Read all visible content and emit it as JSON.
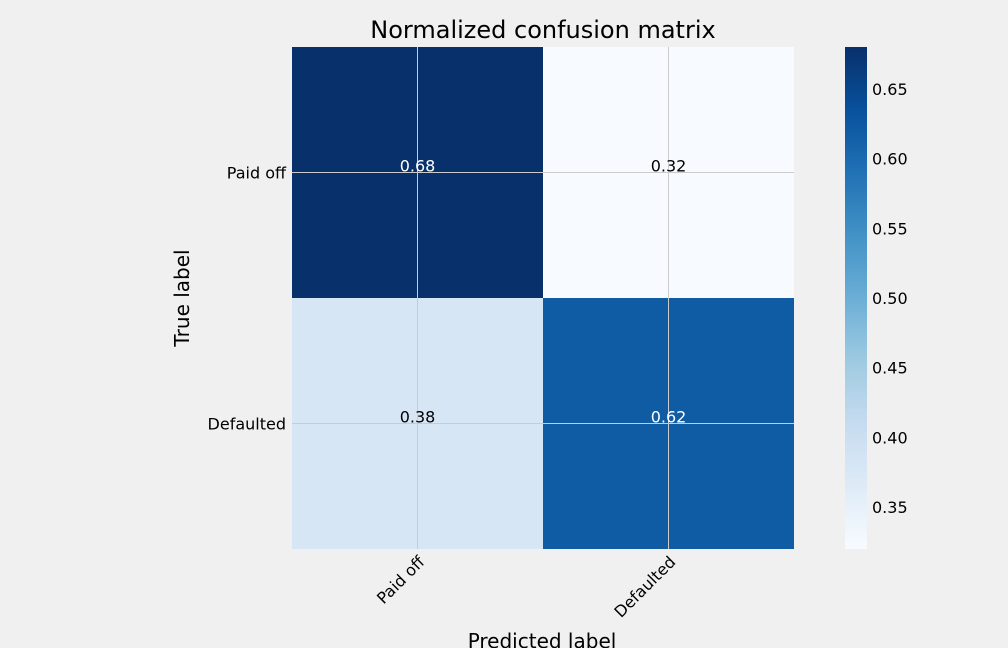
{
  "chart_data": {
    "type": "heatmap",
    "title": "Normalized confusion matrix",
    "xlabel": "Predicted label",
    "ylabel": "True label",
    "x_categories": [
      "Paid off",
      "Defaulted"
    ],
    "y_categories": [
      "Paid off",
      "Defaulted"
    ],
    "values": [
      [
        0.68,
        0.32
      ],
      [
        0.38,
        0.62
      ]
    ],
    "value_labels": [
      [
        "0.68",
        "0.32"
      ],
      [
        "0.38",
        "0.62"
      ]
    ],
    "colormap": "Blues",
    "vmin": 0.32,
    "vmax": 0.68,
    "colorbar_ticks": [
      "0.35",
      "0.40",
      "0.45",
      "0.50",
      "0.55",
      "0.60",
      "0.65"
    ],
    "grid": true,
    "colors": {
      "background": "#f0f0f0",
      "grid": "#cbcbcb",
      "cmap_low": "#f7fbff",
      "cmap_high": "#08306b"
    }
  }
}
